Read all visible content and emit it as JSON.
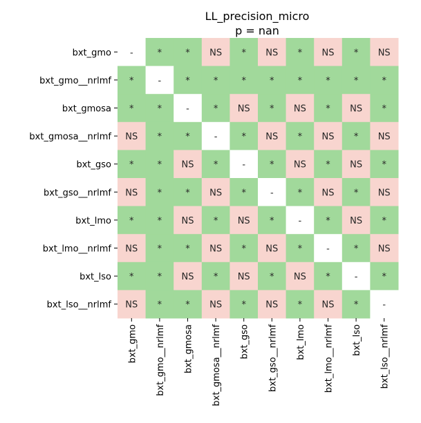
{
  "chart_data": {
    "type": "heatmap",
    "title": "LL_precision_micro",
    "subtitle": "p = nan",
    "rows": [
      "bxt_gmo",
      "bxt_gmo__nrlmf",
      "bxt_gmosa",
      "bxt_gmosa__nrlmf",
      "bxt_gso",
      "bxt_gso__nrlmf",
      "bxt_lmo",
      "bxt_lmo__nrlmf",
      "bxt_lso",
      "bxt_lso__nrlmf"
    ],
    "columns": [
      "bxt_gmo",
      "bxt_gmo__nrlmf",
      "bxt_gmosa",
      "bxt_gmosa__nrlmf",
      "bxt_gso",
      "bxt_gso__nrlmf",
      "bxt_lmo",
      "bxt_lmo__nrlmf",
      "bxt_lso",
      "bxt_lso__nrlmf"
    ],
    "cells": [
      [
        "-",
        "*",
        "*",
        "NS",
        "*",
        "NS",
        "*",
        "NS",
        "*",
        "NS"
      ],
      [
        "*",
        "-",
        "*",
        "*",
        "*",
        "*",
        "*",
        "*",
        "*",
        "*"
      ],
      [
        "*",
        "*",
        "-",
        "*",
        "NS",
        "*",
        "NS",
        "*",
        "NS",
        "*"
      ],
      [
        "NS",
        "*",
        "*",
        "-",
        "*",
        "NS",
        "*",
        "NS",
        "*",
        "NS"
      ],
      [
        "*",
        "*",
        "NS",
        "*",
        "-",
        "*",
        "NS",
        "*",
        "NS",
        "*"
      ],
      [
        "NS",
        "*",
        "*",
        "NS",
        "*",
        "-",
        "*",
        "NS",
        "*",
        "NS"
      ],
      [
        "*",
        "*",
        "NS",
        "*",
        "NS",
        "*",
        "-",
        "*",
        "NS",
        "*"
      ],
      [
        "NS",
        "*",
        "*",
        "NS",
        "*",
        "NS",
        "*",
        "-",
        "*",
        "NS"
      ],
      [
        "*",
        "*",
        "NS",
        "*",
        "NS",
        "*",
        "NS",
        "*",
        "-",
        "*"
      ],
      [
        "NS",
        "*",
        "*",
        "NS",
        "*",
        "NS",
        "*",
        "NS",
        "*",
        "-"
      ]
    ],
    "colors": {
      "*": "#a1d99b",
      "NS": "#f8d5cf",
      "-": "#ffffff"
    },
    "legend": "none",
    "grid": false
  }
}
